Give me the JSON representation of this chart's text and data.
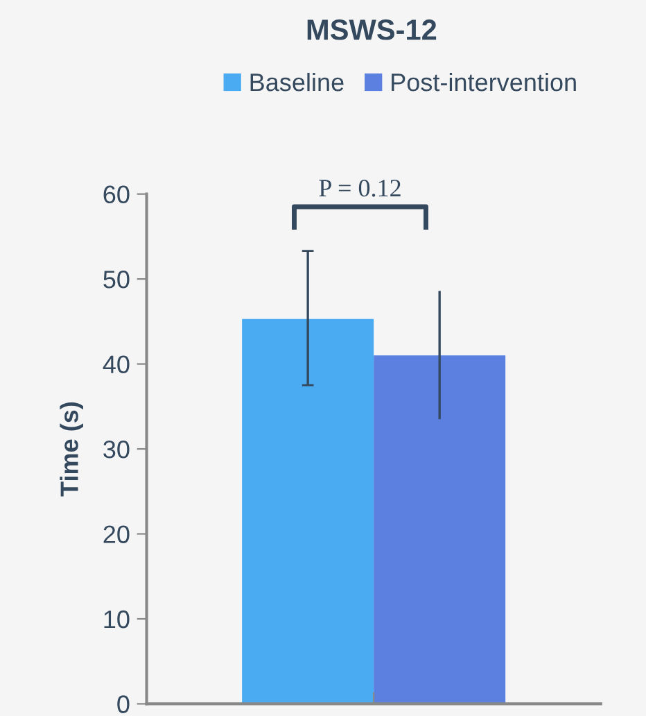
{
  "chart_data": {
    "type": "bar",
    "title": "MSWS-12",
    "ylabel": "Time (s)",
    "categories": [
      null
    ],
    "series": [
      {
        "name": "Baseline",
        "color": "#4aaaf2",
        "values": [
          45.3
        ],
        "errors": [
          [
            37.5,
            53.3
          ]
        ]
      },
      {
        "name": "Post-intervention",
        "color": "#5b80e0",
        "values": [
          41.0
        ],
        "errors": [
          [
            33.5,
            48.6
          ]
        ]
      }
    ],
    "ylim": [
      0,
      60
    ],
    "yticks": [
      0,
      10,
      20,
      30,
      40,
      50,
      60
    ],
    "grid": false,
    "legend": "top",
    "annotations": [
      "P = 0.12"
    ]
  }
}
